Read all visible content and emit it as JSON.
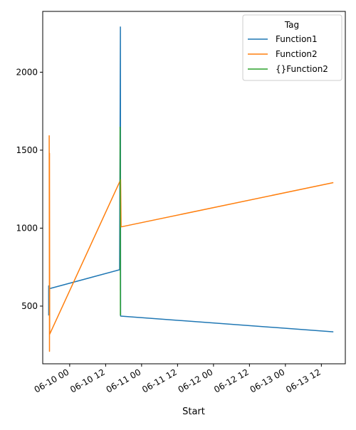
{
  "chart_data": {
    "type": "line",
    "title": "",
    "xlabel": "Start",
    "ylabel": "",
    "x_tick_labels": [
      "06-10 00",
      "06-10 12",
      "06-11 00",
      "06-11 12",
      "06-12 00",
      "06-12 12",
      "06-13 00",
      "06-13 12"
    ],
    "x_ticks": [
      "2023-06-10T00:00",
      "2023-06-10T12:00",
      "2023-06-11T00:00",
      "2023-06-11T12:00",
      "2023-06-12T00:00",
      "2023-06-12T12:00",
      "2023-06-13T00:00",
      "2023-06-13T12:00"
    ],
    "xlim": [
      "2023-06-09T15:00",
      "2023-06-13T20:00"
    ],
    "y_ticks": [
      500,
      1000,
      1500,
      2000
    ],
    "ylim": [
      130,
      2390
    ],
    "grid": false,
    "legend": {
      "title": "Tag",
      "placement": "top-right"
    },
    "series": [
      {
        "name": "Function1",
        "color": "#1f77b4",
        "points": [
          [
            "2023-06-09T17:00",
            440
          ],
          [
            "2023-06-09T17:00",
            630
          ],
          [
            "2023-06-09T17:00",
            500
          ],
          [
            "2023-06-09T17:20",
            612
          ],
          [
            "2023-06-10T16:40",
            733
          ],
          [
            "2023-06-10T16:55",
            2290
          ],
          [
            "2023-06-10T17:00",
            436
          ],
          [
            "2023-06-13T16:00",
            335
          ]
        ]
      },
      {
        "name": "Function2",
        "color": "#ff7f0e",
        "points": [
          [
            "2023-06-09T17:10",
            1595
          ],
          [
            "2023-06-09T17:15",
            210
          ],
          [
            "2023-06-09T17:15",
            1480
          ],
          [
            "2023-06-09T17:20",
            320
          ],
          [
            "2023-06-10T17:00",
            1310
          ],
          [
            "2023-06-10T17:10",
            1008
          ],
          [
            "2023-06-13T16:00",
            1292
          ]
        ]
      },
      {
        "name": "{}Function2",
        "color": "#2ca02c",
        "points": [
          [
            "2023-06-10T16:50",
            1650
          ],
          [
            "2023-06-10T16:55",
            440
          ]
        ]
      }
    ]
  }
}
